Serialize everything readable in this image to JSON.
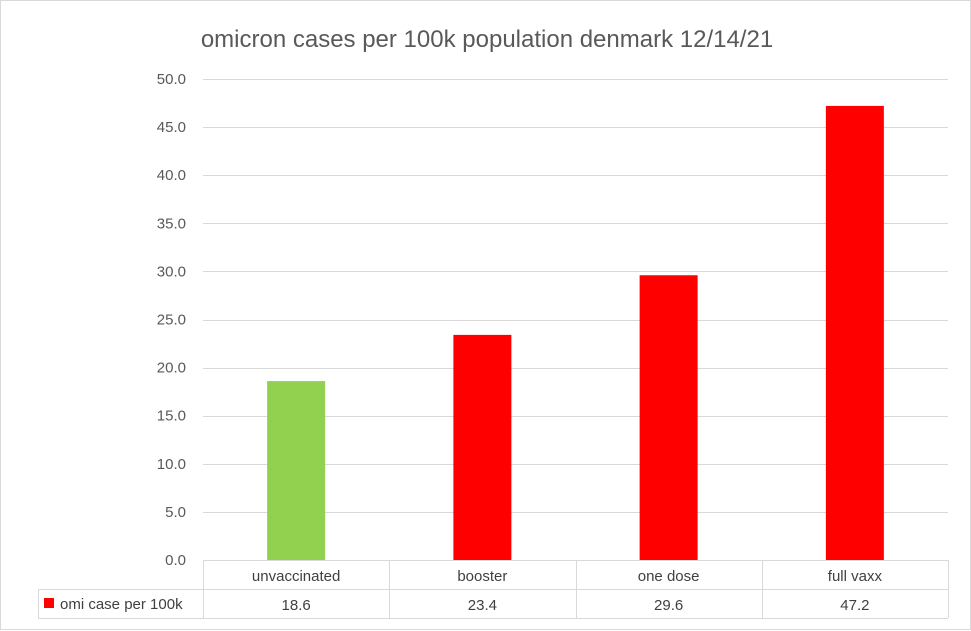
{
  "chart_data": {
    "type": "bar",
    "title": "omicron cases per 100k population denmark 12/14/21",
    "categories": [
      "unvaccinated",
      "booster",
      "one dose",
      "full vaxx"
    ],
    "series": [
      {
        "name": "omi case per 100k",
        "values": [
          18.6,
          23.4,
          29.6,
          47.2
        ],
        "value_labels": [
          "18.6",
          "23.4",
          "29.6",
          "47.2"
        ],
        "color": "#ff0000"
      }
    ],
    "bar_colors": [
      "#92d050",
      "#ff0000",
      "#ff0000",
      "#ff0000"
    ],
    "ylim": [
      0,
      50
    ],
    "yticks": [
      0,
      5,
      10,
      15,
      20,
      25,
      30,
      35,
      40,
      45,
      50
    ],
    "ytick_labels": [
      "0.0",
      "5.0",
      "10.0",
      "15.0",
      "20.0",
      "25.0",
      "30.0",
      "35.0",
      "40.0",
      "45.0",
      "50.0"
    ],
    "xlabel": "",
    "ylabel": "",
    "grid": true,
    "legend": "data-table-bottom"
  }
}
